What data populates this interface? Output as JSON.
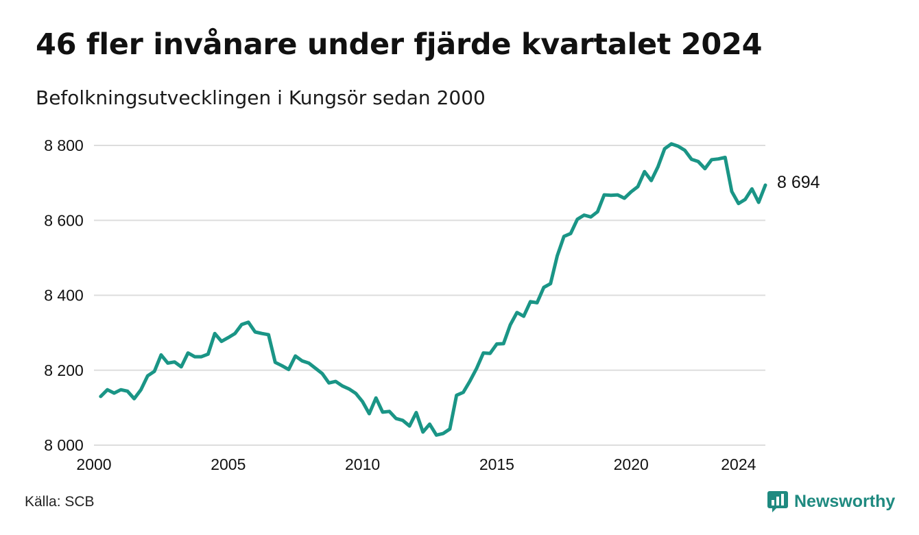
{
  "title": "46 fler invånare under fjärde kvartalet 2024",
  "subtitle": "Befolkningsutvecklingen i Kungsör sedan 2000",
  "source": "Källa: SCB",
  "brand": {
    "name": "Newsworthy",
    "icon": "newsworthy-chart-icon",
    "color": "#1f8a80"
  },
  "colors": {
    "line": "#1a9586",
    "grid": "#dddddd",
    "text": "#111111"
  },
  "chart_data": {
    "type": "line",
    "xlim": [
      2000,
      2025
    ],
    "ylim": [
      8000,
      8800
    ],
    "y_ticks": [
      8000,
      8200,
      8400,
      8600,
      8800
    ],
    "y_tick_labels": [
      "8 000",
      "8 200",
      "8 400",
      "8 600",
      "8 800"
    ],
    "x_ticks": [
      2000,
      2005,
      2010,
      2015,
      2020,
      2024
    ],
    "x_tick_labels": [
      "2000",
      "2005",
      "2010",
      "2015",
      "2020",
      "2024"
    ],
    "grid": "horizontal",
    "end_label": "8 694",
    "x": [
      2000.25,
      2000.5,
      2000.75,
      2001,
      2001.25,
      2001.5,
      2001.75,
      2002,
      2002.25,
      2002.5,
      2002.75,
      2003,
      2003.25,
      2003.5,
      2003.75,
      2004,
      2004.25,
      2004.5,
      2004.75,
      2005,
      2005.25,
      2005.5,
      2005.75,
      2006,
      2006.25,
      2006.5,
      2006.75,
      2007,
      2007.25,
      2007.5,
      2007.75,
      2008,
      2008.25,
      2008.5,
      2008.75,
      2009,
      2009.25,
      2009.5,
      2009.75,
      2010,
      2010.25,
      2010.5,
      2010.75,
      2011,
      2011.25,
      2011.5,
      2011.75,
      2012,
      2012.25,
      2012.5,
      2012.75,
      2013,
      2013.25,
      2013.5,
      2013.75,
      2014,
      2014.25,
      2014.5,
      2014.75,
      2015,
      2015.25,
      2015.5,
      2015.75,
      2016,
      2016.25,
      2016.5,
      2016.75,
      2017,
      2017.25,
      2017.5,
      2017.75,
      2018,
      2018.25,
      2018.5,
      2018.75,
      2019,
      2019.25,
      2019.5,
      2019.75,
      2020,
      2020.25,
      2020.5,
      2020.75,
      2021,
      2021.25,
      2021.5,
      2021.75,
      2022,
      2022.25,
      2022.5,
      2022.75,
      2023,
      2023.25,
      2023.5,
      2023.75,
      2024,
      2024.25,
      2024.5,
      2024.75,
      2025
    ],
    "values": [
      8130,
      8148,
      8139,
      8148,
      8144,
      8124,
      8148,
      8185,
      8197,
      8241,
      8219,
      8222,
      8209,
      8246,
      8236,
      8236,
      8243,
      8298,
      8277,
      8287,
      8298,
      8322,
      8328,
      8302,
      8298,
      8295,
      8221,
      8212,
      8202,
      8238,
      8225,
      8219,
      8205,
      8191,
      8166,
      8170,
      8158,
      8150,
      8138,
      8116,
      8084,
      8126,
      8088,
      8090,
      8071,
      8066,
      8051,
      8087,
      8035,
      8056,
      8027,
      8031,
      8043,
      8133,
      8141,
      8171,
      8205,
      8246,
      8245,
      8270,
      8271,
      8321,
      8354,
      8344,
      8383,
      8380,
      8421,
      8431,
      8505,
      8557,
      8565,
      8603,
      8614,
      8609,
      8623,
      8668,
      8667,
      8668,
      8659,
      8676,
      8690,
      8730,
      8706,
      8743,
      8791,
      8804,
      8798,
      8787,
      8763,
      8757,
      8738,
      8762,
      8764,
      8768,
      8677,
      8645,
      8656,
      8684,
      8648,
      8694
    ]
  }
}
